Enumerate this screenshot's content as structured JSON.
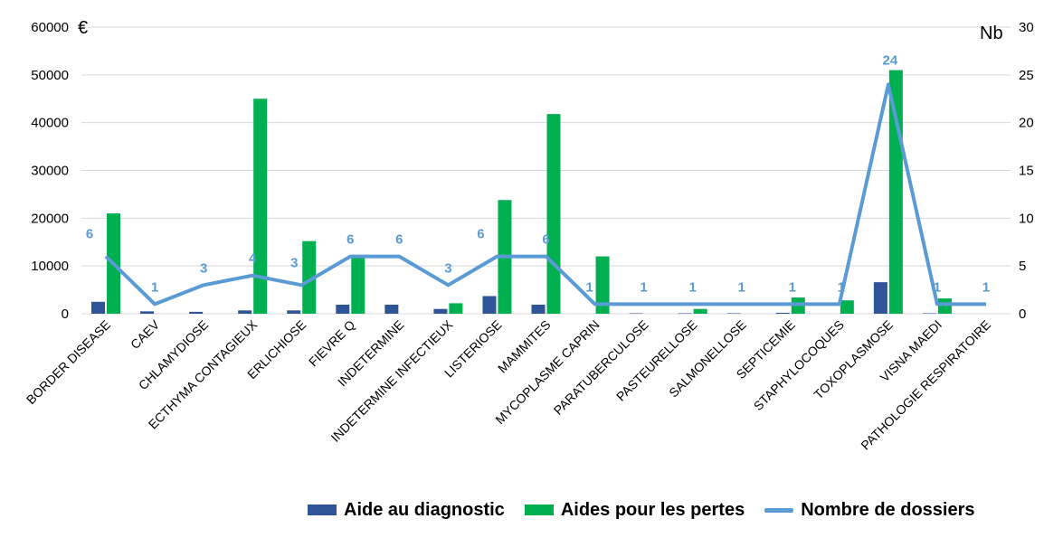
{
  "chart_data": {
    "type": "bar",
    "left_axis_unit": "€",
    "right_axis_unit": "Nb",
    "ylim_left": [
      0,
      60000
    ],
    "yticks_left": [
      0,
      10000,
      20000,
      30000,
      40000,
      50000,
      60000
    ],
    "ylim_right": [
      0,
      30
    ],
    "yticks_right": [
      0,
      5,
      10,
      15,
      20,
      25,
      30
    ],
    "grid": true,
    "legend_position": "bottom-right",
    "categories": [
      "BORDER DISEASE",
      "CAEV",
      "CHLAMYDIOSE",
      "ECTHYMA CONTAGIEUX",
      "ERLICHIOSE",
      "FIEVRE Q",
      "INDETERMINE",
      "INDETERMINE INFECTIEUX",
      "LISTERIOSE",
      "MAMMITES",
      "MYCOPLASME CAPRIN",
      "PARATUBERCULOSE",
      "PASTEURELLOSE",
      "SALMONELLOSE",
      "SEPTICEMIE",
      "STAPHYLOCOQUES",
      "TOXOPLASMOSE",
      "VISNA MAEDI",
      "PATHOLOGIE RESPIRATOIRE"
    ],
    "series": [
      {
        "name": "Aide au diagnostic",
        "kind": "bar",
        "axis": "left",
        "color": "#2F5597",
        "values": [
          2500,
          500,
          400,
          700,
          700,
          1900,
          1900,
          1000,
          3700,
          1900,
          0,
          100,
          100,
          100,
          200,
          0,
          6600,
          100,
          0
        ]
      },
      {
        "name": "Aides pour les pertes",
        "kind": "bar",
        "axis": "left",
        "color": "#00B050",
        "values": [
          21000,
          0,
          0,
          45000,
          15200,
          11800,
          0,
          2200,
          23800,
          41800,
          12000,
          0,
          1000,
          0,
          3400,
          2800,
          51000,
          3200,
          0
        ]
      },
      {
        "name": "Nombre de dossiers",
        "kind": "line",
        "axis": "right",
        "color": "#5B9BD5",
        "values": [
          6,
          1,
          3,
          4,
          3,
          6,
          6,
          3,
          6,
          6,
          1,
          1,
          1,
          1,
          1,
          1,
          24,
          1,
          1
        ],
        "labels": [
          "6",
          "1",
          "3",
          "4",
          "3",
          "6",
          "6",
          "3",
          "6",
          "6",
          "1",
          "1",
          "1",
          "1",
          "1",
          "1",
          "24",
          "1",
          "1"
        ]
      }
    ]
  }
}
